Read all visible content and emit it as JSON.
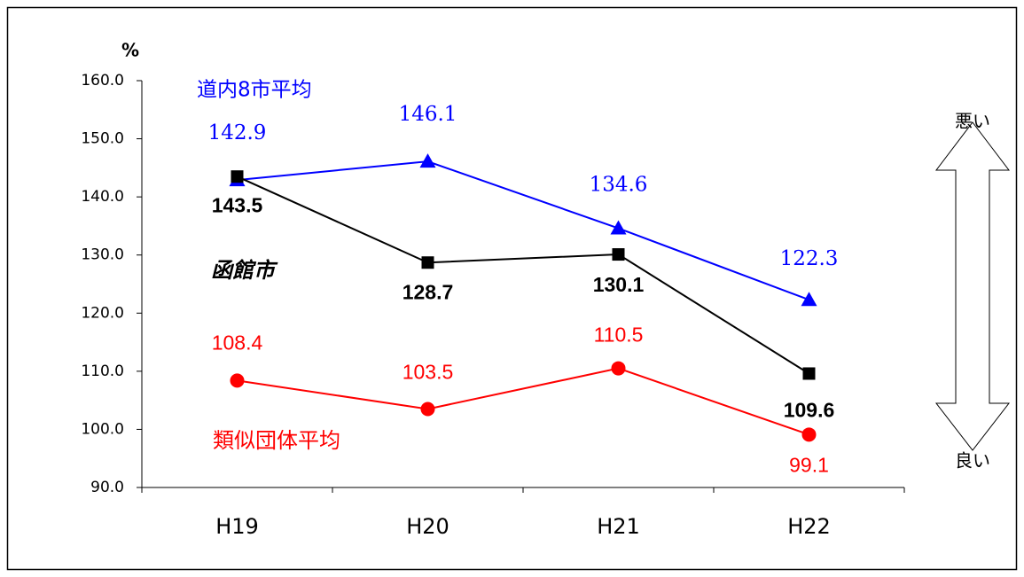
{
  "chart_data": {
    "type": "line",
    "y_unit": "%",
    "categories": [
      "H19",
      "H20",
      "H21",
      "H22"
    ],
    "series": [
      {
        "name": "道内8市平均",
        "color": "#0000ff",
        "marker": "triangle",
        "values": [
          142.9,
          146.1,
          134.6,
          122.3
        ]
      },
      {
        "name": "函館市",
        "color": "#000000",
        "marker": "square",
        "values": [
          143.5,
          128.7,
          130.1,
          109.6
        ]
      },
      {
        "name": "類似団体平均",
        "color": "#ff0000",
        "marker": "circle",
        "values": [
          108.4,
          103.5,
          110.5,
          99.1
        ]
      }
    ],
    "ylim": [
      90,
      160
    ],
    "yticks": [
      {
        "value": 90,
        "label": "90.0"
      },
      {
        "value": 100,
        "label": "100.0"
      },
      {
        "value": 110,
        "label": "110.0"
      },
      {
        "value": 120,
        "label": "120.0"
      },
      {
        "value": 130,
        "label": "130.0"
      },
      {
        "value": 140,
        "label": "140.0"
      },
      {
        "value": 150,
        "label": "150.0"
      },
      {
        "value": 160,
        "label": "160.0"
      }
    ],
    "annotations": {
      "top": "悪い",
      "bottom": "良い"
    }
  }
}
